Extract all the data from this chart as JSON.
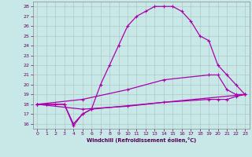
{
  "xlabel": "Windchill (Refroidissement éolien,°C)",
  "xlim": [
    -0.5,
    23.5
  ],
  "ylim": [
    15.5,
    28.5
  ],
  "xticks": [
    0,
    1,
    2,
    3,
    4,
    5,
    6,
    7,
    8,
    9,
    10,
    11,
    12,
    13,
    14,
    15,
    16,
    17,
    18,
    19,
    20,
    21,
    22,
    23
  ],
  "yticks": [
    16,
    17,
    18,
    19,
    20,
    21,
    22,
    23,
    24,
    25,
    26,
    27,
    28
  ],
  "background_color": "#c8e8e8",
  "grid_color": "#b0c8c8",
  "line_color": "#aa00aa",
  "line1_x": [
    0,
    1,
    2,
    3,
    4,
    5,
    6,
    7,
    8,
    9,
    10,
    11,
    12,
    13,
    14,
    15,
    16,
    17,
    18,
    19,
    20,
    21,
    22,
    23
  ],
  "line1_y": [
    18,
    18,
    18,
    18,
    16,
    17,
    17.5,
    20,
    22,
    24,
    26,
    27,
    27.5,
    28,
    28,
    28,
    27.5,
    26.5,
    25,
    24.5,
    22,
    21,
    20,
    19
  ],
  "line2_x": [
    0,
    1,
    2,
    3,
    4,
    5,
    6,
    23
  ],
  "line2_y": [
    18,
    18,
    18,
    18,
    15.8,
    17,
    17.5,
    19
  ],
  "line3_x": [
    0,
    5,
    10,
    14,
    19,
    20,
    21,
    22,
    23
  ],
  "line3_y": [
    18,
    18.5,
    19.5,
    20.5,
    21,
    21,
    19.5,
    19,
    19
  ],
  "line4_x": [
    0,
    5,
    10,
    14,
    19,
    20,
    21,
    22,
    23
  ],
  "line4_y": [
    18,
    17.5,
    17.8,
    18.2,
    18.5,
    18.5,
    18.5,
    18.8,
    19
  ]
}
